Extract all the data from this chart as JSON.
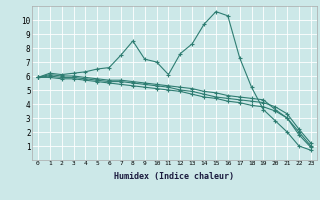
{
  "xlabel": "Humidex (Indice chaleur)",
  "bg_color": "#cce8e8",
  "line_color": "#2e7d72",
  "grid_color": "#ffffff",
  "xlim": [
    -0.5,
    23.5
  ],
  "ylim": [
    0,
    11
  ],
  "xticks": [
    0,
    1,
    2,
    3,
    4,
    5,
    6,
    7,
    8,
    9,
    10,
    11,
    12,
    13,
    14,
    15,
    16,
    17,
    18,
    19,
    20,
    21,
    22,
    23
  ],
  "yticks": [
    1,
    2,
    3,
    4,
    5,
    6,
    7,
    8,
    9,
    10
  ],
  "lines": [
    {
      "x": [
        0,
        1,
        2,
        3,
        4,
        5,
        6,
        7,
        8,
        9,
        10,
        11,
        12,
        13,
        14,
        15,
        16,
        17,
        18,
        19,
        20,
        21,
        22,
        23
      ],
      "y": [
        5.9,
        6.2,
        6.1,
        6.2,
        6.3,
        6.5,
        6.6,
        7.5,
        8.5,
        7.2,
        7.0,
        6.1,
        7.6,
        8.3,
        9.7,
        10.6,
        10.3,
        7.3,
        5.2,
        3.6,
        2.8,
        2.0,
        1.0,
        0.7
      ]
    },
    {
      "x": [
        0,
        1,
        2,
        3,
        4,
        5,
        6,
        7,
        8,
        9,
        10,
        11,
        12,
        13,
        14,
        15,
        16,
        17,
        18,
        19,
        20,
        21,
        22,
        23
      ],
      "y": [
        5.9,
        6.1,
        6.0,
        6.0,
        5.9,
        5.8,
        5.7,
        5.7,
        5.6,
        5.5,
        5.4,
        5.3,
        5.2,
        5.1,
        4.9,
        4.8,
        4.6,
        4.5,
        4.4,
        4.3,
        3.6,
        3.0,
        2.0,
        1.0
      ]
    },
    {
      "x": [
        0,
        1,
        2,
        3,
        4,
        5,
        6,
        7,
        8,
        9,
        10,
        11,
        12,
        13,
        14,
        15,
        16,
        17,
        18,
        19,
        20,
        21,
        22,
        23
      ],
      "y": [
        5.9,
        6.0,
        5.9,
        5.9,
        5.8,
        5.7,
        5.6,
        5.6,
        5.5,
        5.4,
        5.3,
        5.2,
        5.0,
        4.9,
        4.7,
        4.5,
        4.4,
        4.3,
        4.2,
        4.1,
        3.8,
        3.3,
        2.2,
        1.2
      ]
    },
    {
      "x": [
        0,
        1,
        2,
        3,
        4,
        5,
        6,
        7,
        8,
        9,
        10,
        11,
        12,
        13,
        14,
        15,
        16,
        17,
        18,
        19,
        20,
        21,
        22,
        23
      ],
      "y": [
        5.9,
        5.9,
        5.8,
        5.8,
        5.7,
        5.6,
        5.5,
        5.4,
        5.3,
        5.2,
        5.1,
        5.0,
        4.9,
        4.7,
        4.5,
        4.4,
        4.2,
        4.1,
        3.9,
        3.8,
        3.5,
        3.0,
        1.8,
        0.9
      ]
    }
  ]
}
